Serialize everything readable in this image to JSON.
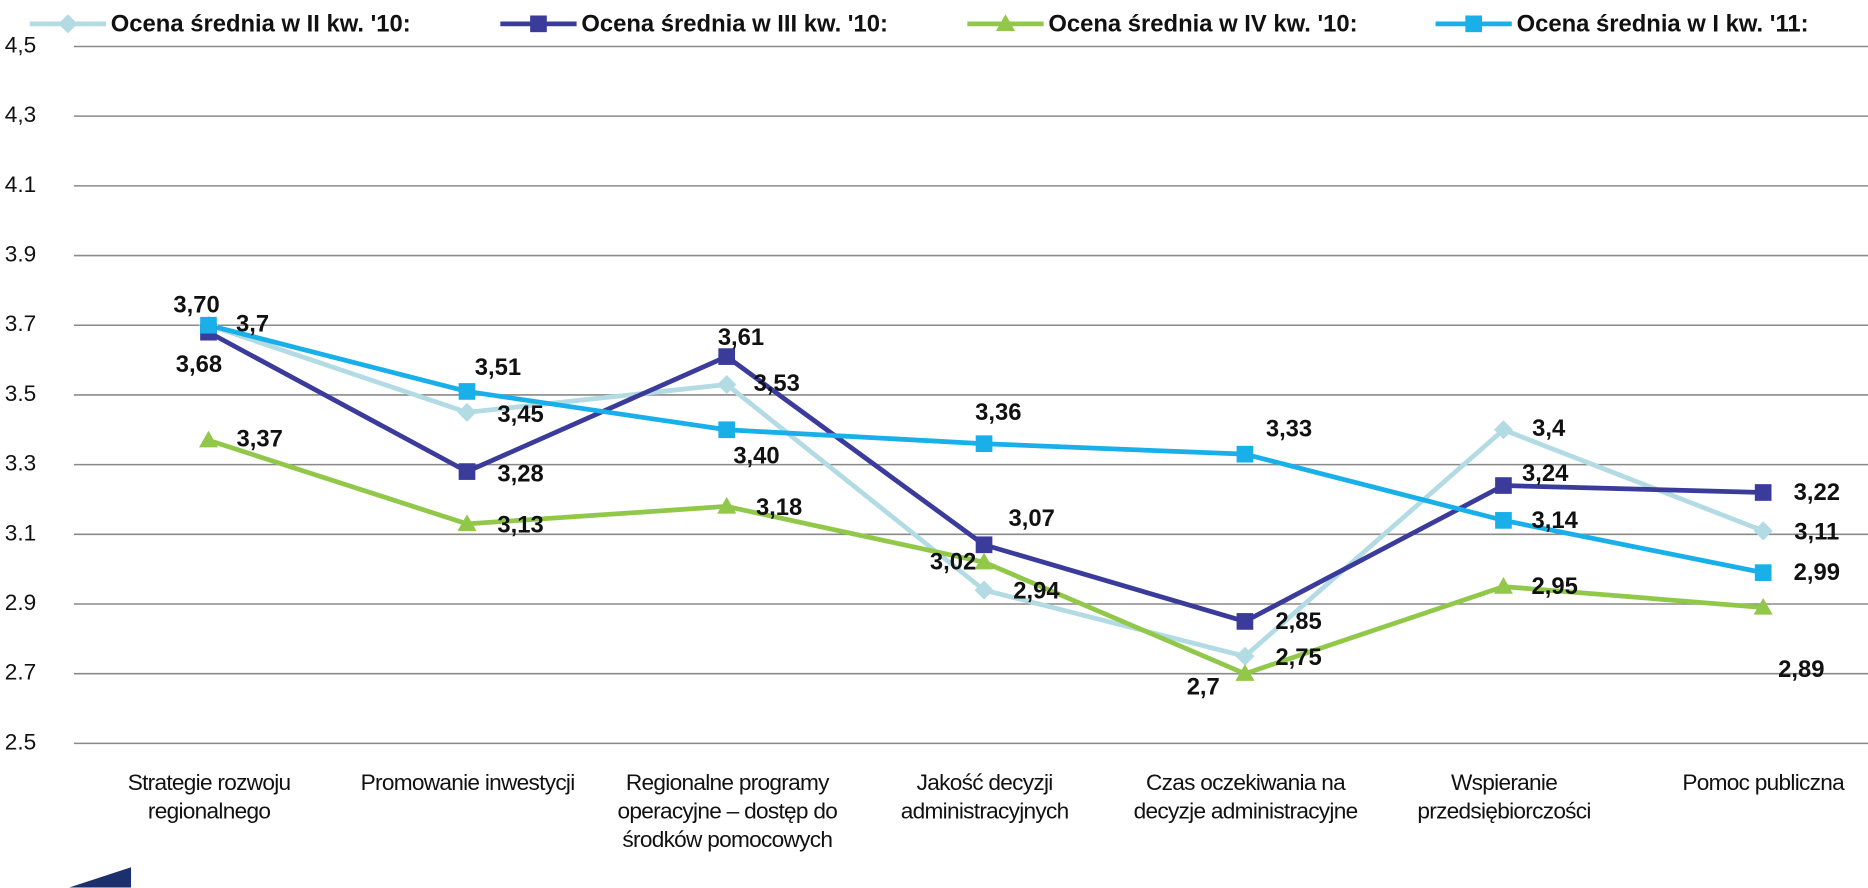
{
  "chart_data": {
    "type": "line",
    "categories": [
      "Strategie rozwoju regionalnego",
      "Promowanie inwestycji",
      "Regionalne programy operacyjne – dostęp do środków pomocowych",
      "Jakość decyzji administracyjnych",
      "Czas oczekiwania na decyzje administracyjne",
      "Wspieranie przedsiębiorczości",
      "Pomoc publiczna"
    ],
    "series": [
      {
        "name": "Ocena średnia w II kw. '10:",
        "color": "#b3dbe3",
        "marker": "diamond",
        "values": [
          3.7,
          3.45,
          3.53,
          2.94,
          2.75,
          3.4,
          3.11
        ],
        "value_labels": [
          "3,7",
          "3,45",
          "3,53",
          "2,94",
          "2,75",
          "3,4",
          "3,11"
        ]
      },
      {
        "name": "Ocena średnia w III kw. '10:",
        "color": "#3b3b9c",
        "marker": "square",
        "values": [
          3.68,
          3.28,
          3.61,
          3.07,
          2.85,
          3.24,
          3.22
        ],
        "value_labels": [
          "3,68",
          "3,28",
          "3,61",
          "3,07",
          "2,85",
          "3,24",
          "3,22"
        ]
      },
      {
        "name": "Ocena średnia w IV kw. '10:",
        "color": "#92c84a",
        "marker": "triangle",
        "values": [
          3.37,
          3.13,
          3.18,
          3.02,
          2.7,
          2.95,
          2.89
        ],
        "value_labels": [
          "3,37",
          "3,13",
          "3,18",
          "3,02",
          "2,7",
          "2,95",
          "2,89"
        ]
      },
      {
        "name": "Ocena średnia w I kw. '11:",
        "color": "#19b0ea",
        "marker": "square",
        "values": [
          3.7,
          3.51,
          3.4,
          3.36,
          3.33,
          3.14,
          2.99
        ],
        "value_labels": [
          "3,70",
          "3,51",
          "3,40",
          "3,36",
          "3,33",
          "3,14",
          "2,99"
        ]
      }
    ],
    "ylim": [
      2.5,
      4.5
    ],
    "yticks": [
      2.5,
      2.7,
      2.9,
      3.1,
      3.3,
      3.5,
      3.7,
      3.9,
      4.1,
      {
        "value": 4.3,
        "label": "4,3"
      },
      {
        "value": 4.5,
        "label": "4,5"
      }
    ],
    "grid": true,
    "legend": "top"
  }
}
